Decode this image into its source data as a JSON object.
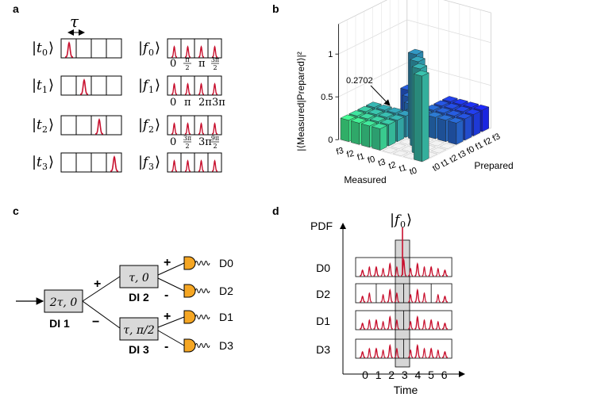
{
  "panels": {
    "a": {
      "label": "a",
      "tau": "τ",
      "time_bins": [
        {
          "ket_pre": "|",
          "var": "t",
          "sub": "0",
          "ket_post": "⟩",
          "pulse_slot": 0
        },
        {
          "ket_pre": "|",
          "var": "t",
          "sub": "1",
          "ket_post": "⟩",
          "pulse_slot": 1
        },
        {
          "ket_pre": "|",
          "var": "t",
          "sub": "2",
          "ket_post": "⟩",
          "pulse_slot": 2
        },
        {
          "ket_pre": "|",
          "var": "t",
          "sub": "3",
          "ket_post": "⟩",
          "pulse_slot": 3
        }
      ],
      "freq_bins": [
        {
          "ket_pre": "|",
          "var": "f",
          "sub": "0",
          "ket_post": "⟩"
        },
        {
          "ket_pre": "|",
          "var": "f",
          "sub": "1",
          "ket_post": "⟩"
        },
        {
          "ket_pre": "|",
          "var": "f",
          "sub": "2",
          "ket_post": "⟩"
        },
        {
          "ket_pre": "|",
          "var": "f",
          "sub": "3",
          "ket_post": "⟩"
        }
      ],
      "phase_rows": [
        {
          "p0": "0",
          "p1_num": "π",
          "p1_den": "2",
          "p2": "π",
          "p3_num": "3π",
          "p3_den": "2"
        },
        {
          "p0": "0",
          "p1": "π",
          "p2": "2π",
          "p3": "3π"
        },
        {
          "p0": "0",
          "p1_num": "3π",
          "p1_den": "2",
          "p2": "3π",
          "p3_num": "9π",
          "p3_den": "2"
        }
      ]
    },
    "b": {
      "label": "b",
      "annotation": "0.2702"
    },
    "c": {
      "label": "c",
      "dis": [
        {
          "name": "DI 1",
          "param": "2τ, 0"
        },
        {
          "name": "DI 2",
          "param": "τ, 0"
        },
        {
          "name": "DI 3",
          "param": "τ, π/2"
        }
      ],
      "signs": {
        "plus": "+",
        "minus": "−",
        "minus_short": "-"
      },
      "detectors": [
        "D0",
        "D2",
        "D1",
        "D3"
      ]
    },
    "d": {
      "label": "d",
      "ylabel": "PDF",
      "xlabel": "Time",
      "ket": {
        "pre": "|",
        "var": "f",
        "sub": "0",
        "post": "⟩"
      },
      "rows": [
        "D0",
        "D2",
        "D1",
        "D3"
      ],
      "x_ticks": [
        "0",
        "1",
        "2",
        "3",
        "4",
        "5",
        "6"
      ],
      "row_peaks": [
        [
          0.35,
          0.55,
          0.75,
          1.0,
          0.75,
          0.55,
          0.35
        ],
        [
          0.35,
          0.0,
          0.75,
          0.0,
          0.75,
          0.0,
          0.35
        ],
        [
          0.35,
          0.55,
          0.75,
          0.0,
          0.75,
          0.55,
          0.35
        ],
        [
          0.35,
          0.55,
          0.75,
          0.0,
          0.75,
          0.55,
          0.35
        ]
      ],
      "half_peak_fraction": 0.5
    }
  },
  "chart_data": {
    "type": "bar3d",
    "title": "",
    "zlabel": "|⟨Measured|Prepared⟩|²",
    "xlabel": "Measured",
    "ylabel": "Prepared",
    "z_ticks": [
      "0",
      "0.5",
      "1"
    ],
    "zlim": [
      0,
      1
    ],
    "measured_ticks": [
      "t0",
      "t1",
      "t2",
      "t3",
      "f0",
      "f1",
      "f2",
      "f3"
    ],
    "prepared_ticks": [
      "t0",
      "t1",
      "t2",
      "t3",
      "f0",
      "f1",
      "f2",
      "f3"
    ],
    "annotation": {
      "text": "0.2702",
      "value": 0.2702
    },
    "values_note": "diagonal time-time = 1, frequency-frequency block = 0.25, cross time/frequency blocks ≈ 0.25",
    "diagonal": [
      1,
      1,
      1,
      1,
      0.25,
      0.25,
      0.25,
      0.25
    ]
  },
  "colors": {
    "pulse": "#c8102e",
    "bar_green": "#3ddf84",
    "bar_blue": "#1a24e0",
    "di_box": "#d9d9d9",
    "detector": "#f5a623",
    "highlight": "#d6d6d6"
  }
}
